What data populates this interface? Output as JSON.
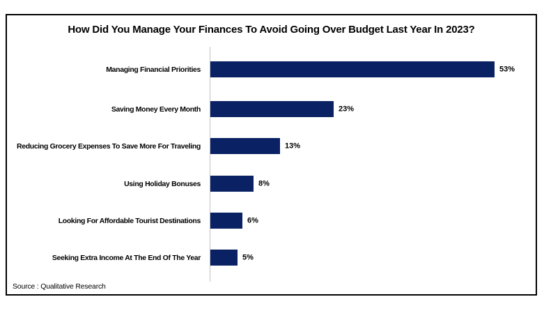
{
  "chart_data": {
    "type": "bar",
    "orientation": "horizontal",
    "title": "How Did You Manage Your Finances To Avoid Going Over Budget Last Year In 2023?",
    "categories": [
      "Managing Financial Priorities",
      "Saving Money Every Month",
      "Reducing Grocery Expenses To Save More For Traveling",
      "Using Holiday Bonuses",
      "Looking For Affordable Tourist Destinations",
      "Seeking Extra Income At The End Of The Year"
    ],
    "values": [
      53,
      23,
      13,
      8,
      6,
      5
    ],
    "value_labels": [
      "53%",
      "23%",
      "13%",
      "8%",
      "6%",
      "5%"
    ],
    "xlabel": "",
    "ylabel": "",
    "xlim": [
      0,
      58
    ],
    "grid": false,
    "legend": false,
    "x_axis_ticks_visible": false,
    "bar_color": "#0a2264",
    "axis_line_color": "#bfbfbf",
    "border_color": "#000000",
    "text_color": "#000000",
    "source": "Source : Qualitative Research"
  }
}
